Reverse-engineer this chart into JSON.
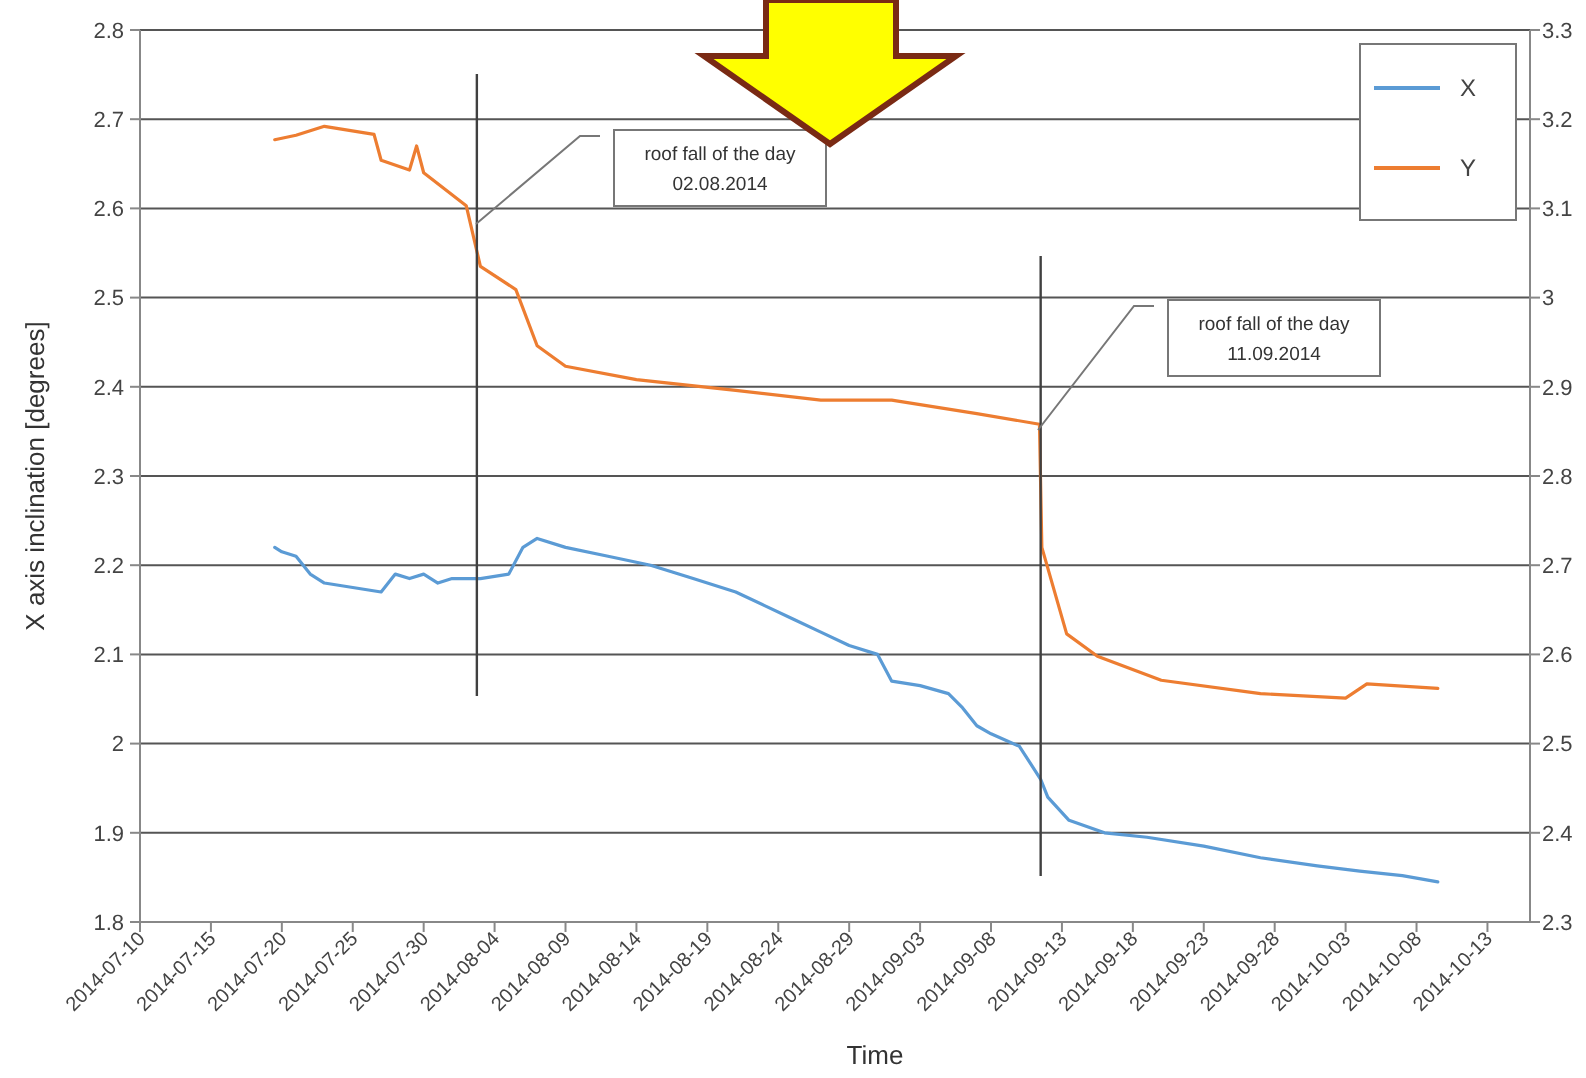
{
  "chart_data": {
    "type": "line",
    "xlabel": "Time",
    "ylabel": "X axis inclination [degrees]",
    "xlim": [
      "2014-07-10",
      "2014-10-16"
    ],
    "xticks": [
      "2014-07-10",
      "2014-07-15",
      "2014-07-20",
      "2014-07-25",
      "2014-07-30",
      "2014-08-04",
      "2014-08-09",
      "2014-08-14",
      "2014-08-19",
      "2014-08-24",
      "2014-08-29",
      "2014-09-03",
      "2014-09-08",
      "2014-09-13",
      "2014-09-18",
      "2014-09-23",
      "2014-09-28",
      "2014-10-03",
      "2014-10-08",
      "2014-10-13"
    ],
    "ylim": [
      1.8,
      2.8
    ],
    "yticks": [
      1.8,
      1.9,
      2,
      2.1,
      2.2,
      2.3,
      2.4,
      2.5,
      2.6,
      2.7,
      2.8
    ],
    "y2lim": [
      2.3,
      3.3
    ],
    "y2ticks": [
      2.3,
      2.4,
      2.5,
      2.6,
      2.7,
      2.8,
      2.9,
      3,
      3.1,
      3.2,
      3.3
    ],
    "grid": "y",
    "legend": "top right",
    "marker": "none",
    "line_style": "solid",
    "series": [
      {
        "name": "X",
        "color": "#5b9bd5",
        "x": [
          "2014-07-19T12:00",
          "2014-07-20",
          "2014-07-21",
          "2014-07-22",
          "2014-07-23",
          "2014-07-25",
          "2014-07-27",
          "2014-07-28",
          "2014-07-29",
          "2014-07-30",
          "2014-07-31",
          "2014-08-01",
          "2014-08-03",
          "2014-08-05",
          "2014-08-06",
          "2014-08-07",
          "2014-08-09",
          "2014-08-12",
          "2014-08-15",
          "2014-08-18",
          "2014-08-21",
          "2014-08-23",
          "2014-08-25",
          "2014-08-27",
          "2014-08-29",
          "2014-08-31",
          "2014-09-01",
          "2014-09-03",
          "2014-09-05",
          "2014-09-06",
          "2014-09-07",
          "2014-09-08",
          "2014-09-10",
          "2014-09-11T12:00",
          "2014-09-12",
          "2014-09-13T12:00",
          "2014-09-16",
          "2014-09-19",
          "2014-09-23",
          "2014-09-27",
          "2014-10-01",
          "2014-10-04",
          "2014-10-07",
          "2014-10-09T12:00"
        ],
        "values": [
          2.22,
          2.215,
          2.21,
          2.19,
          2.18,
          2.175,
          2.17,
          2.19,
          2.185,
          2.19,
          2.18,
          2.185,
          2.185,
          2.19,
          2.22,
          2.23,
          2.22,
          2.21,
          2.2,
          2.185,
          2.17,
          2.155,
          2.14,
          2.125,
          2.11,
          2.1,
          2.07,
          2.065,
          2.056,
          2.04,
          2.02,
          2.011,
          1.997,
          1.96,
          1.94,
          1.914,
          1.9,
          1.895,
          1.885,
          1.872,
          1.863,
          1.857,
          1.852,
          1.845
        ]
      },
      {
        "name": "Y",
        "color": "#ed7d31",
        "axis": "y2",
        "x": [
          "2014-07-19T12:00",
          "2014-07-21",
          "2014-07-23",
          "2014-07-26T12:00",
          "2014-07-27",
          "2014-07-29",
          "2014-07-29T12:00",
          "2014-07-30",
          "2014-08-02",
          "2014-08-03",
          "2014-08-05T12:00",
          "2014-08-07",
          "2014-08-09",
          "2014-08-14",
          "2014-08-21",
          "2014-08-27",
          "2014-09-01",
          "2014-09-07",
          "2014-09-11T10:00",
          "2014-09-11T14:00",
          "2014-09-13T08:00",
          "2014-09-15T12:00",
          "2014-09-20",
          "2014-09-27",
          "2014-10-03",
          "2014-10-04T12:00",
          "2014-10-09T12:00"
        ],
        "values": [
          3.177,
          3.182,
          3.192,
          3.183,
          3.154,
          3.143,
          3.17,
          3.14,
          3.103,
          3.035,
          3.009,
          2.946,
          2.923,
          2.908,
          2.896,
          2.885,
          2.885,
          2.87,
          2.858,
          2.72,
          2.623,
          2.598,
          2.571,
          2.556,
          2.551,
          2.567,
          2.562
        ]
      }
    ],
    "ref_lines": [
      {
        "axis": "x",
        "value": "2014-08-02T18:00",
        "color": "#404040"
      },
      {
        "axis": "x",
        "value": "2014-09-11T12:00",
        "color": "#404040"
      }
    ],
    "annotations": [
      "roof fall of the day\n02.08.2014",
      "roof fall of the day\n11.09.2014"
    ]
  }
}
